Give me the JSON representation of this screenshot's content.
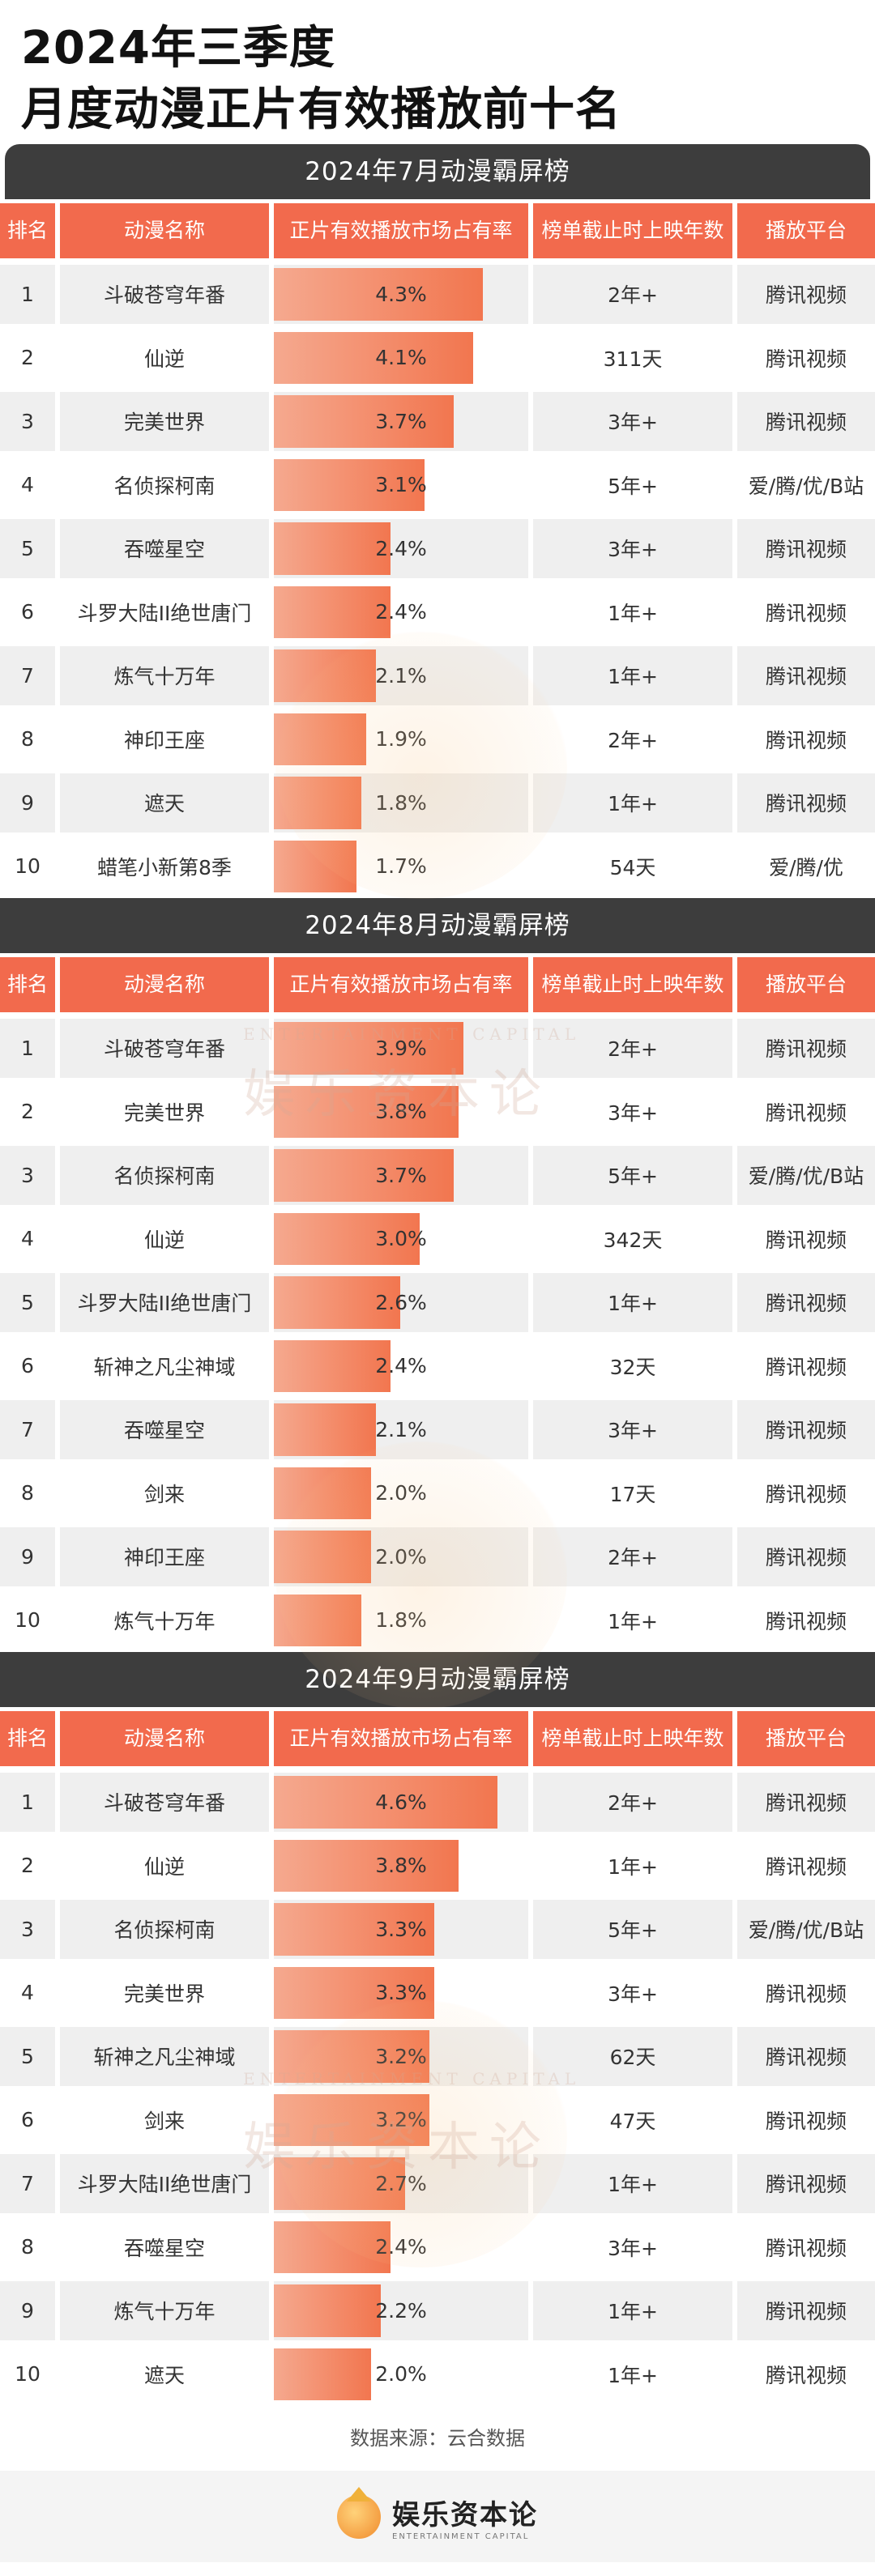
{
  "title_line1": "2024年三季度",
  "title_line2": "月度动漫正片有效播放前十名",
  "headers": {
    "rank": "排名",
    "name": "动漫名称",
    "share": "正片有效播放市场占有率",
    "days": "榜单截止时上映年数",
    "platform": "播放平台"
  },
  "sections": [
    {
      "title": "2024年7月动漫霸屏榜",
      "rows": [
        {
          "rank": "1",
          "name": "斗破苍穹年番",
          "share": "4.3%",
          "value": 4.3,
          "days": "2年+",
          "platform": "腾讯视频"
        },
        {
          "rank": "2",
          "name": "仙逆",
          "share": "4.1%",
          "value": 4.1,
          "days": "311天",
          "platform": "腾讯视频"
        },
        {
          "rank": "3",
          "name": "完美世界",
          "share": "3.7%",
          "value": 3.7,
          "days": "3年+",
          "platform": "腾讯视频"
        },
        {
          "rank": "4",
          "name": "名侦探柯南",
          "share": "3.1%",
          "value": 3.1,
          "days": "5年+",
          "platform": "爱/腾/优/B站"
        },
        {
          "rank": "5",
          "name": "吞噬星空",
          "share": "2.4%",
          "value": 2.4,
          "days": "3年+",
          "platform": "腾讯视频"
        },
        {
          "rank": "6",
          "name": "斗罗大陆II绝世唐门",
          "share": "2.4%",
          "value": 2.4,
          "days": "1年+",
          "platform": "腾讯视频"
        },
        {
          "rank": "7",
          "name": "炼气十万年",
          "share": "2.1%",
          "value": 2.1,
          "days": "1年+",
          "platform": "腾讯视频"
        },
        {
          "rank": "8",
          "name": "神印王座",
          "share": "1.9%",
          "value": 1.9,
          "days": "2年+",
          "platform": "腾讯视频"
        },
        {
          "rank": "9",
          "name": "遮天",
          "share": "1.8%",
          "value": 1.8,
          "days": "1年+",
          "platform": "腾讯视频"
        },
        {
          "rank": "10",
          "name": "蜡笔小新第8季",
          "share": "1.7%",
          "value": 1.7,
          "days": "54天",
          "platform": "爱/腾/优"
        }
      ]
    },
    {
      "title": "2024年8月动漫霸屏榜",
      "rows": [
        {
          "rank": "1",
          "name": "斗破苍穹年番",
          "share": "3.9%",
          "value": 3.9,
          "days": "2年+",
          "platform": "腾讯视频"
        },
        {
          "rank": "2",
          "name": "完美世界",
          "share": "3.8%",
          "value": 3.8,
          "days": "3年+",
          "platform": "腾讯视频"
        },
        {
          "rank": "3",
          "name": "名侦探柯南",
          "share": "3.7%",
          "value": 3.7,
          "days": "5年+",
          "platform": "爱/腾/优/B站"
        },
        {
          "rank": "4",
          "name": "仙逆",
          "share": "3.0%",
          "value": 3.0,
          "days": "342天",
          "platform": "腾讯视频"
        },
        {
          "rank": "5",
          "name": "斗罗大陆II绝世唐门",
          "share": "2.6%",
          "value": 2.6,
          "days": "1年+",
          "platform": "腾讯视频"
        },
        {
          "rank": "6",
          "name": "斩神之凡尘神域",
          "share": "2.4%",
          "value": 2.4,
          "days": "32天",
          "platform": "腾讯视频"
        },
        {
          "rank": "7",
          "name": "吞噬星空",
          "share": "2.1%",
          "value": 2.1,
          "days": "3年+",
          "platform": "腾讯视频"
        },
        {
          "rank": "8",
          "name": "剑来",
          "share": "2.0%",
          "value": 2.0,
          "days": "17天",
          "platform": "腾讯视频"
        },
        {
          "rank": "9",
          "name": "神印王座",
          "share": "2.0%",
          "value": 2.0,
          "days": "2年+",
          "platform": "腾讯视频"
        },
        {
          "rank": "10",
          "name": "炼气十万年",
          "share": "1.8%",
          "value": 1.8,
          "days": "1年+",
          "platform": "腾讯视频"
        }
      ]
    },
    {
      "title": "2024年9月动漫霸屏榜",
      "rows": [
        {
          "rank": "1",
          "name": "斗破苍穹年番",
          "share": "4.6%",
          "value": 4.6,
          "days": "2年+",
          "platform": "腾讯视频"
        },
        {
          "rank": "2",
          "name": "仙逆",
          "share": "3.8%",
          "value": 3.8,
          "days": "1年+",
          "platform": "腾讯视频"
        },
        {
          "rank": "3",
          "name": "名侦探柯南",
          "share": "3.3%",
          "value": 3.3,
          "days": "5年+",
          "platform": "爱/腾/优/B站"
        },
        {
          "rank": "4",
          "name": "完美世界",
          "share": "3.3%",
          "value": 3.3,
          "days": "3年+",
          "platform": "腾讯视频"
        },
        {
          "rank": "5",
          "name": "斩神之凡尘神域",
          "share": "3.2%",
          "value": 3.2,
          "days": "62天",
          "platform": "腾讯视频"
        },
        {
          "rank": "6",
          "name": "剑来",
          "share": "3.2%",
          "value": 3.2,
          "days": "47天",
          "platform": "腾讯视频"
        },
        {
          "rank": "7",
          "name": "斗罗大陆II绝世唐门",
          "share": "2.7%",
          "value": 2.7,
          "days": "1年+",
          "platform": "腾讯视频"
        },
        {
          "rank": "8",
          "name": "吞噬星空",
          "share": "2.4%",
          "value": 2.4,
          "days": "3年+",
          "platform": "腾讯视频"
        },
        {
          "rank": "9",
          "name": "炼气十万年",
          "share": "2.2%",
          "value": 2.2,
          "days": "1年+",
          "platform": "腾讯视频"
        },
        {
          "rank": "10",
          "name": "遮天",
          "share": "2.0%",
          "value": 2.0,
          "days": "1年+",
          "platform": "腾讯视频"
        }
      ]
    }
  ],
  "source": "数据来源：云合数据",
  "brand": {
    "name_cn": "娱乐资本论",
    "name_en": "ENTERTAINMENT CAPITAL"
  },
  "colors": {
    "header_bg": "#f26a4d",
    "section_bar": "#3d3d3d",
    "bar_start": "#f5a98f",
    "bar_end": "#f2764f"
  }
}
